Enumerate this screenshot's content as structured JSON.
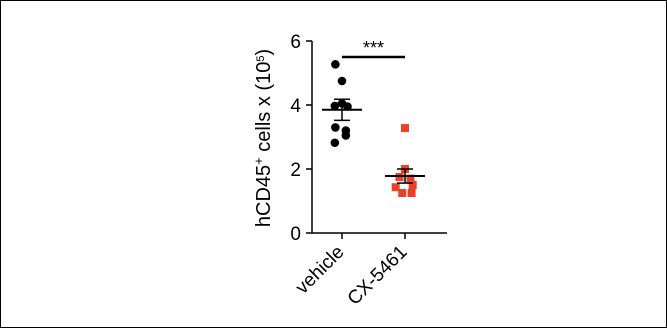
{
  "chart_data": {
    "type": "scatter",
    "ylabel_main": "hCD45",
    "ylabel_sup": "+",
    "ylabel_mid": " cells x (10",
    "ylabel_exp": "5",
    "ylabel_end": ")",
    "yticks": [
      "0",
      "2",
      "4",
      "6"
    ],
    "ylim": [
      0,
      6
    ],
    "categories": [
      "vehicle",
      "CX-5461"
    ],
    "series": [
      {
        "category": "vehicle",
        "marker": "circle",
        "color": "#000000",
        "points": [
          {
            "x": -0.12,
            "y": 5.27
          },
          {
            "x": 0.0,
            "y": 4.75
          },
          {
            "x": 0.0,
            "y": 4.05
          },
          {
            "x": -0.13,
            "y": 3.97
          },
          {
            "x": 0.1,
            "y": 3.95
          },
          {
            "x": -0.12,
            "y": 3.3
          },
          {
            "x": 0.07,
            "y": 3.2
          },
          {
            "x": 0.07,
            "y": 3.05
          },
          {
            "x": -0.13,
            "y": 2.82
          }
        ],
        "mean": 3.85,
        "sem": 0.33
      },
      {
        "category": "CX-5461",
        "marker": "square",
        "color": "#e8432a",
        "points": [
          {
            "x": 0.0,
            "y": 3.28
          },
          {
            "x": 0.0,
            "y": 2.0
          },
          {
            "x": -0.1,
            "y": 1.75
          },
          {
            "x": 0.1,
            "y": 1.7
          },
          {
            "x": -0.17,
            "y": 1.43
          },
          {
            "x": 0.14,
            "y": 1.5
          },
          {
            "x": -0.05,
            "y": 1.25
          },
          {
            "x": 0.12,
            "y": 1.25
          }
        ],
        "mean": 1.78,
        "sem": 0.22
      }
    ],
    "significance": "***"
  }
}
